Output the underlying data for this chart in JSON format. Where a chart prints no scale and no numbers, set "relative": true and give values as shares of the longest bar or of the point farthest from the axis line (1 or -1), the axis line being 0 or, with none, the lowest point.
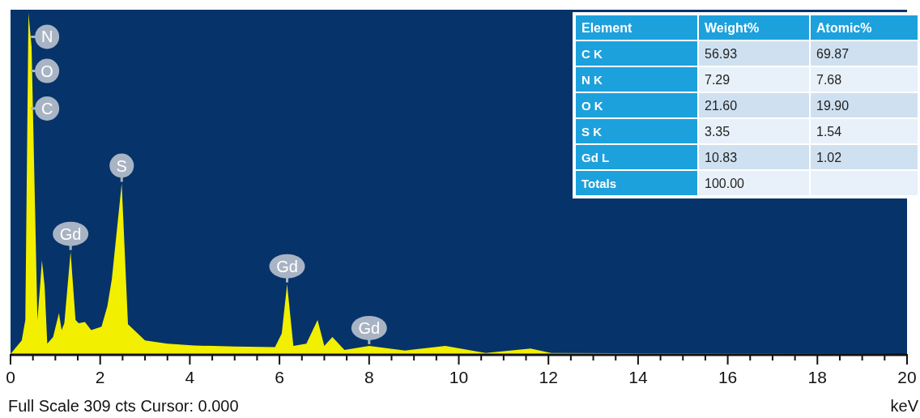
{
  "chart_data": [
    {
      "type": "area",
      "relative": true,
      "xlabel": "keV",
      "xlim": [
        0,
        20
      ],
      "xticks": [
        0,
        {
          "value": 0.5,
          "label": null
        },
        {
          "value": 1,
          "label": null
        },
        {
          "value": 1.5,
          "label": null
        },
        2,
        {
          "value": 2.5,
          "label": null
        },
        {
          "value": 3,
          "label": null
        },
        {
          "value": 3.5,
          "label": null
        },
        4,
        {
          "value": 4.5,
          "label": null
        },
        {
          "value": 5,
          "label": null
        },
        {
          "value": 5.5,
          "label": null
        },
        6,
        {
          "value": 6.5,
          "label": null
        },
        {
          "value": 7,
          "label": null
        },
        {
          "value": 7.5,
          "label": null
        },
        8,
        {
          "value": 8.5,
          "label": null
        },
        {
          "value": 9,
          "label": null
        },
        {
          "value": 9.5,
          "label": null
        },
        10,
        {
          "value": 10.5,
          "label": null
        },
        {
          "value": 11,
          "label": null
        },
        {
          "value": 11.5,
          "label": null
        },
        12,
        {
          "value": 12.5,
          "label": null
        },
        {
          "value": 13,
          "label": null
        },
        {
          "value": 13.5,
          "label": null
        },
        14,
        {
          "value": 14.5,
          "label": null
        },
        {
          "value": 15,
          "label": null
        },
        {
          "value": 15.5,
          "label": null
        },
        16,
        {
          "value": 16.5,
          "label": null
        },
        {
          "value": 17,
          "label": null
        },
        {
          "value": 17.5,
          "label": null
        },
        18,
        {
          "value": 18.5,
          "label": null
        },
        {
          "value": 19,
          "label": null
        },
        {
          "value": 19.5,
          "label": null
        },
        20
      ],
      "x": [
        0,
        0.25,
        0.33,
        0.4,
        0.47,
        0.6,
        0.66,
        0.7,
        0.76,
        0.82,
        0.95,
        1.08,
        1.14,
        1.2,
        1.34,
        1.45,
        1.52,
        1.66,
        1.8,
        2.03,
        2.16,
        2.26,
        2.48,
        2.62,
        3.0,
        3.5,
        4.1,
        5.0,
        5.9,
        6.05,
        6.17,
        6.31,
        6.6,
        6.85,
        7.0,
        7.18,
        7.45,
        8.0,
        8.8,
        9.7,
        10.6,
        11.6,
        12.06,
        14.0,
        16.0,
        20.0
      ],
      "values": [
        0,
        0.04,
        0.1,
        1.0,
        0.9,
        0.1,
        0.2,
        0.275,
        0.2,
        0.03,
        0.05,
        0.12,
        0.07,
        0.09,
        0.3,
        0.1,
        0.09,
        0.094,
        0.07,
        0.08,
        0.14,
        0.22,
        0.5,
        0.087,
        0.04,
        0.03,
        0.025,
        0.022,
        0.02,
        0.06,
        0.205,
        0.024,
        0.03,
        0.1,
        0.024,
        0.05,
        0.012,
        0.024,
        0.01,
        0.024,
        0.003,
        0.016,
        0.003,
        0.002,
        0.001,
        0
      ],
      "color": "#f2ef00",
      "annotations": [
        {
          "text": "N",
          "x": 0.4,
          "y": 0.93
        },
        {
          "text": "O",
          "x": 0.4,
          "y": 0.83
        },
        {
          "text": "C",
          "x": 0.4,
          "y": 0.72
        },
        {
          "text": "Gd",
          "x": 1.34,
          "y": 0.3
        },
        {
          "text": "S",
          "x": 2.48,
          "y": 0.5
        },
        {
          "text": "Gd",
          "x": 6.17,
          "y": 0.205
        },
        {
          "text": "Gd",
          "x": 8.0,
          "y": 0.024
        },
        "Full Scale 309 cts Cursor: 0.000"
      ]
    },
    {
      "type": "other",
      "categories": [
        "Element",
        "Weight%",
        "Atomic%"
      ],
      "y_categories": [
        "C K",
        "N K",
        "O K",
        "S K",
        "Gd L",
        "Totals"
      ],
      "cell_labels": [
        [
          "56.93",
          "69.87"
        ],
        [
          "7.29",
          "7.68"
        ],
        [
          "21.60",
          "19.90"
        ],
        [
          "3.35",
          "1.54"
        ],
        [
          "10.83",
          "1.02"
        ],
        [
          "100.00",
          null
        ]
      ]
    }
  ]
}
